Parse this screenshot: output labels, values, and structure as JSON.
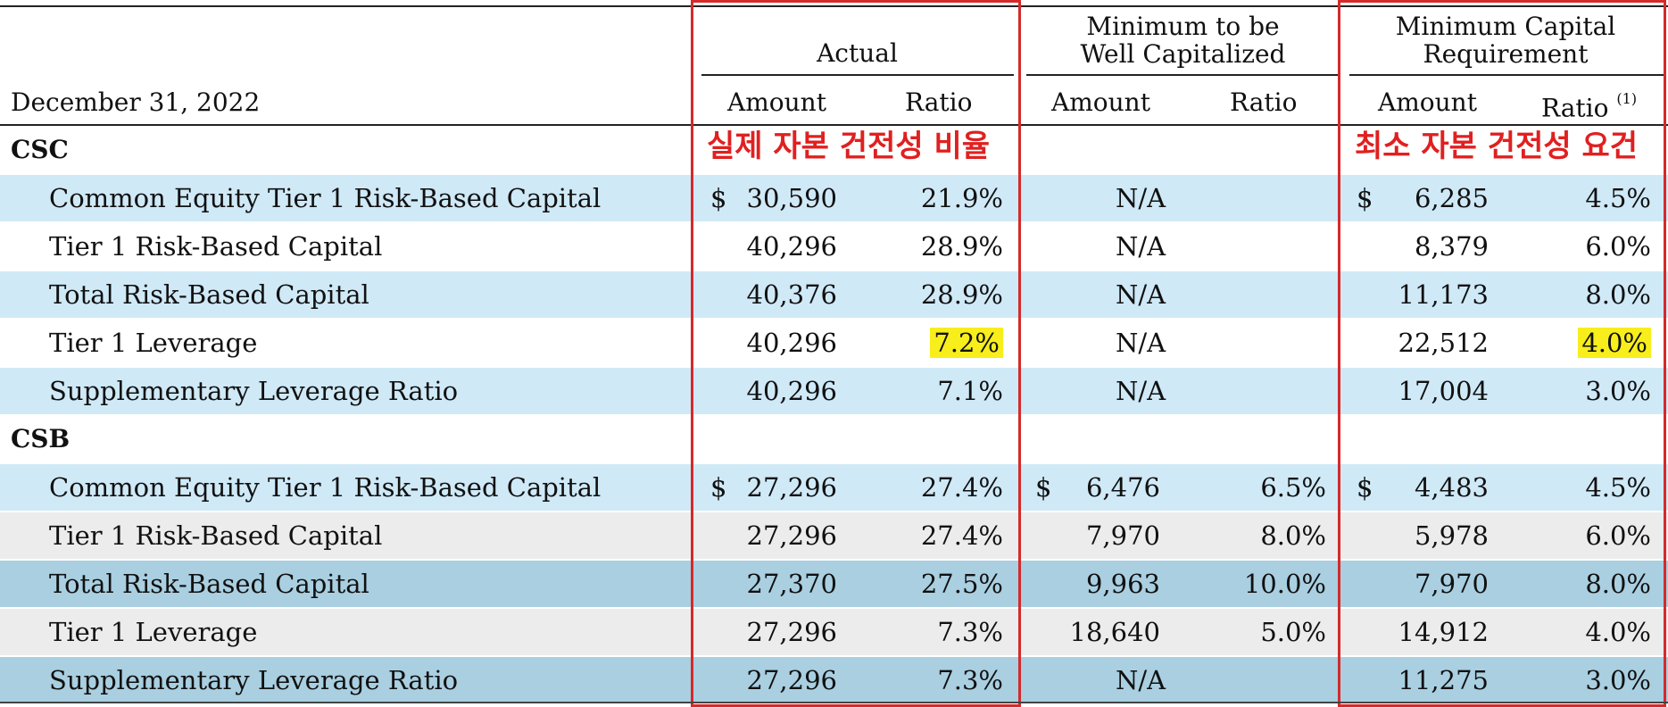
{
  "header": {
    "date_label": "December 31, 2022",
    "groups": [
      {
        "line1": "",
        "line2": "Actual"
      },
      {
        "line1": "Minimum to be",
        "line2": "Well Capitalized"
      },
      {
        "line1": "Minimum Capital",
        "line2": "Requirement"
      }
    ],
    "amount_label": "Amount",
    "ratio_label": "Ratio",
    "footnote": "(1)"
  },
  "annotations": {
    "actual_note": "실제 자본 건전성 비율",
    "minimum_note": "최소 자본 건전성 요건"
  },
  "sections": [
    {
      "name": "CSC",
      "rows": [
        {
          "label": "Common Equity Tier 1 Risk-Based Capital",
          "act_amt": "30,590",
          "act_ratio": "21.9%",
          "well_amt": "N/A",
          "well_ratio": "",
          "min_amt": "6,285",
          "min_ratio": "4.5%"
        },
        {
          "label": "Tier 1 Risk-Based Capital",
          "act_amt": "40,296",
          "act_ratio": "28.9%",
          "well_amt": "N/A",
          "well_ratio": "",
          "min_amt": "8,379",
          "min_ratio": "6.0%"
        },
        {
          "label": "Total Risk-Based Capital",
          "act_amt": "40,376",
          "act_ratio": "28.9%",
          "well_amt": "N/A",
          "well_ratio": "",
          "min_amt": "11,173",
          "min_ratio": "8.0%"
        },
        {
          "label": "Tier 1 Leverage",
          "act_amt": "40,296",
          "act_ratio": "7.2%",
          "well_amt": "N/A",
          "well_ratio": "",
          "min_amt": "22,512",
          "min_ratio": "4.0%"
        },
        {
          "label": "Supplementary Leverage Ratio",
          "act_amt": "40,296",
          "act_ratio": "7.1%",
          "well_amt": "N/A",
          "well_ratio": "",
          "min_amt": "17,004",
          "min_ratio": "3.0%"
        }
      ]
    },
    {
      "name": "CSB",
      "rows": [
        {
          "label": "Common Equity Tier 1 Risk-Based Capital",
          "act_amt": "27,296",
          "act_ratio": "27.4%",
          "well_amt": "6,476",
          "well_ratio": "6.5%",
          "min_amt": "4,483",
          "min_ratio": "4.5%"
        },
        {
          "label": "Tier 1 Risk-Based Capital",
          "act_amt": "27,296",
          "act_ratio": "27.4%",
          "well_amt": "7,970",
          "well_ratio": "8.0%",
          "min_amt": "5,978",
          "min_ratio": "6.0%"
        },
        {
          "label": "Total Risk-Based Capital",
          "act_amt": "27,370",
          "act_ratio": "27.5%",
          "well_amt": "9,963",
          "well_ratio": "10.0%",
          "min_amt": "7,970",
          "min_ratio": "8.0%"
        },
        {
          "label": "Tier 1 Leverage",
          "act_amt": "27,296",
          "act_ratio": "7.3%",
          "well_amt": "18,640",
          "well_ratio": "5.0%",
          "min_amt": "14,912",
          "min_ratio": "4.0%"
        },
        {
          "label": "Supplementary Leverage Ratio",
          "act_amt": "27,296",
          "act_ratio": "7.3%",
          "well_amt": "N/A",
          "well_ratio": "",
          "min_amt": "11,275",
          "min_ratio": "3.0%"
        }
      ]
    }
  ],
  "currency_symbol": "$",
  "colors": {
    "row_blue": "#cfe9f7",
    "row_blue_dark": "#a9cfe1",
    "row_gray": "#ececec",
    "highlight": "#f7ee1b",
    "annotation_red": "#e02020",
    "box_red": "#d42a2a"
  }
}
